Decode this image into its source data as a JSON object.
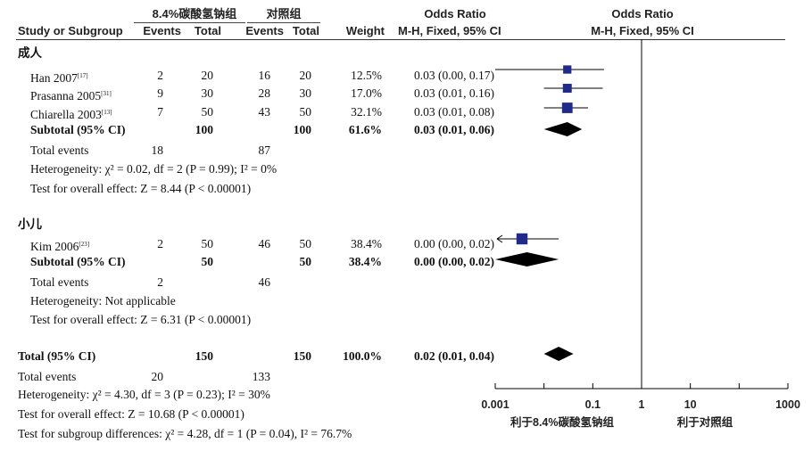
{
  "header": {
    "group1": "8.4%碳酸氢钠组",
    "group2": "对照组",
    "or_title": "Odds Ratio",
    "plot_title": "Odds Ratio",
    "study": "Study or Subgroup",
    "events": "Events",
    "total": "Total",
    "weight": "Weight",
    "method": "M-H, Fixed, 95% CI",
    "plot_method": "M-H, Fixed, 95% CI"
  },
  "subgroups": [
    {
      "name": "成人",
      "studies": [
        {
          "study": "Han 2007",
          "ref": "[17]",
          "e1": "2",
          "n1": "20",
          "e2": "16",
          "n2": "20",
          "weight": "12.5%",
          "ci": "0.03 (0.00, 0.17)"
        },
        {
          "study": "Prasanna 2005",
          "ref": "[31]",
          "e1": "9",
          "n1": "30",
          "e2": "28",
          "n2": "30",
          "weight": "17.0%",
          "ci": "0.03 (0.01, 0.16)"
        },
        {
          "study": "Chiarella 2003",
          "ref": "[13]",
          "e1": "7",
          "n1": "50",
          "e2": "43",
          "n2": "50",
          "weight": "32.1%",
          "ci": "0.03 (0.01, 0.08)"
        }
      ],
      "subtotal": {
        "label": "Subtotal (95% CI)",
        "n1": "100",
        "n2": "100",
        "weight": "61.6%",
        "ci": "0.03 (0.01, 0.06)"
      },
      "total_events": {
        "label": "Total events",
        "e1": "18",
        "e2": "87"
      },
      "heterogeneity": "Heterogeneity: χ² = 0.02, df = 2 (P = 0.99); I² = 0%",
      "overall": "Test for overall effect: Z = 8.44 (P < 0.00001)"
    },
    {
      "name": "小儿",
      "studies": [
        {
          "study": "Kim 2006",
          "ref": "[23]",
          "e1": "2",
          "n1": "50",
          "e2": "46",
          "n2": "50",
          "weight": "38.4%",
          "ci": "0.00 (0.00, 0.02)"
        }
      ],
      "subtotal": {
        "label": "Subtotal (95% CI)",
        "n1": "50",
        "n2": "50",
        "weight": "38.4%",
        "ci": "0.00 (0.00, 0.02)"
      },
      "total_events": {
        "label": "Total events",
        "e1": "2",
        "e2": "46"
      },
      "heterogeneity": "Heterogeneity: Not applicable",
      "overall": "Test for overall effect: Z = 6.31 (P < 0.00001)"
    }
  ],
  "total": {
    "label": "Total (95% CI)",
    "n1": "150",
    "n2": "150",
    "weight": "100.0%",
    "ci": "0.02 (0.01, 0.04)",
    "events_label": "Total events",
    "e1": "20",
    "e2": "133",
    "heterogeneity": "Heterogeneity: χ² = 4.30, df = 3 (P = 0.23); I² = 30%",
    "overall": "Test for overall effect: Z = 10.68 (P < 0.00001)",
    "subgroup_diff": "Test for subgroup differences: χ² = 4.28, df = 1 (P = 0.04), I² = 76.7%"
  },
  "axis": {
    "ticks": [
      "0.001",
      "0.1",
      "1",
      "10",
      "1000"
    ],
    "favours_left": "利于8.4%碳酸氢钠组",
    "favours_right": "利于对照组"
  },
  "chart_data": {
    "type": "forest",
    "scale": "log",
    "xlim": [
      0.001,
      1000
    ],
    "reference_line": 1,
    "studies": [
      {
        "name": "Han 2007",
        "subgroup": "成人",
        "or": 0.03,
        "lo": 0.0,
        "hi": 0.17,
        "weight": 12.5
      },
      {
        "name": "Prasanna 2005",
        "subgroup": "成人",
        "or": 0.03,
        "lo": 0.01,
        "hi": 0.16,
        "weight": 17.0
      },
      {
        "name": "Chiarella 2003",
        "subgroup": "成人",
        "or": 0.03,
        "lo": 0.01,
        "hi": 0.08,
        "weight": 32.1
      },
      {
        "name": "Kim 2006",
        "subgroup": "小儿",
        "or": 0.0,
        "lo": 0.0,
        "hi": 0.02,
        "weight": 38.4
      }
    ],
    "pooled": [
      {
        "name": "成人 Subtotal",
        "or": 0.03,
        "lo": 0.01,
        "hi": 0.06
      },
      {
        "name": "小儿 Subtotal",
        "or": 0.0,
        "lo": 0.0,
        "hi": 0.02
      },
      {
        "name": "Total",
        "or": 0.02,
        "lo": 0.01,
        "hi": 0.04
      }
    ],
    "colors": {
      "square": "#1f2a8a",
      "diamond": "#000000"
    }
  }
}
